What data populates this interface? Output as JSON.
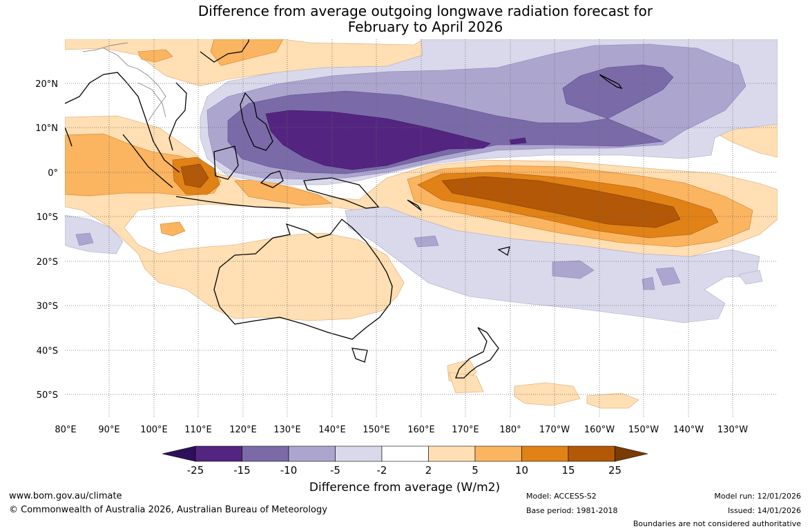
{
  "title": {
    "line1": "Difference from average outgoing longwave radiation forecast for",
    "line2": "February to April 2026"
  },
  "lat_labels": [
    "20°N",
    "10°N",
    "0°",
    "10°S",
    "20°S",
    "30°S",
    "40°S",
    "50°S"
  ],
  "lon_labels": [
    "80°E",
    "90°E",
    "100°E",
    "110°E",
    "120°E",
    "130°E",
    "140°E",
    "150°E",
    "160°E",
    "170°E",
    "180°",
    "170°W",
    "160°W",
    "150°W",
    "140°W",
    "130°W"
  ],
  "legend": {
    "ticks": [
      "-25",
      "-15",
      "-10",
      "-5",
      "-2",
      "2",
      "5",
      "10",
      "15",
      "25"
    ],
    "colors": [
      "#2e0f5c",
      "#542580",
      "#7a6ba8",
      "#aca6cf",
      "#d9d9eb",
      "#ffffff",
      "#ffdfb3",
      "#fbb460",
      "#e18216",
      "#b35806",
      "#7a3b04"
    ],
    "label": "Difference from average (W/m2)"
  },
  "footer": {
    "url": "www.bom.gov.au/climate",
    "copyright": "© Commonwealth of Australia 2026, Australian Bureau of Meteorology",
    "model": "Model: ACCESS-S2",
    "base_period": "Base period: 1981-2018",
    "model_run": "Model run: 12/01/2026",
    "issued": "Issued: 14/01/2026",
    "disclaimer": "Boundaries are not considered authoritative"
  }
}
